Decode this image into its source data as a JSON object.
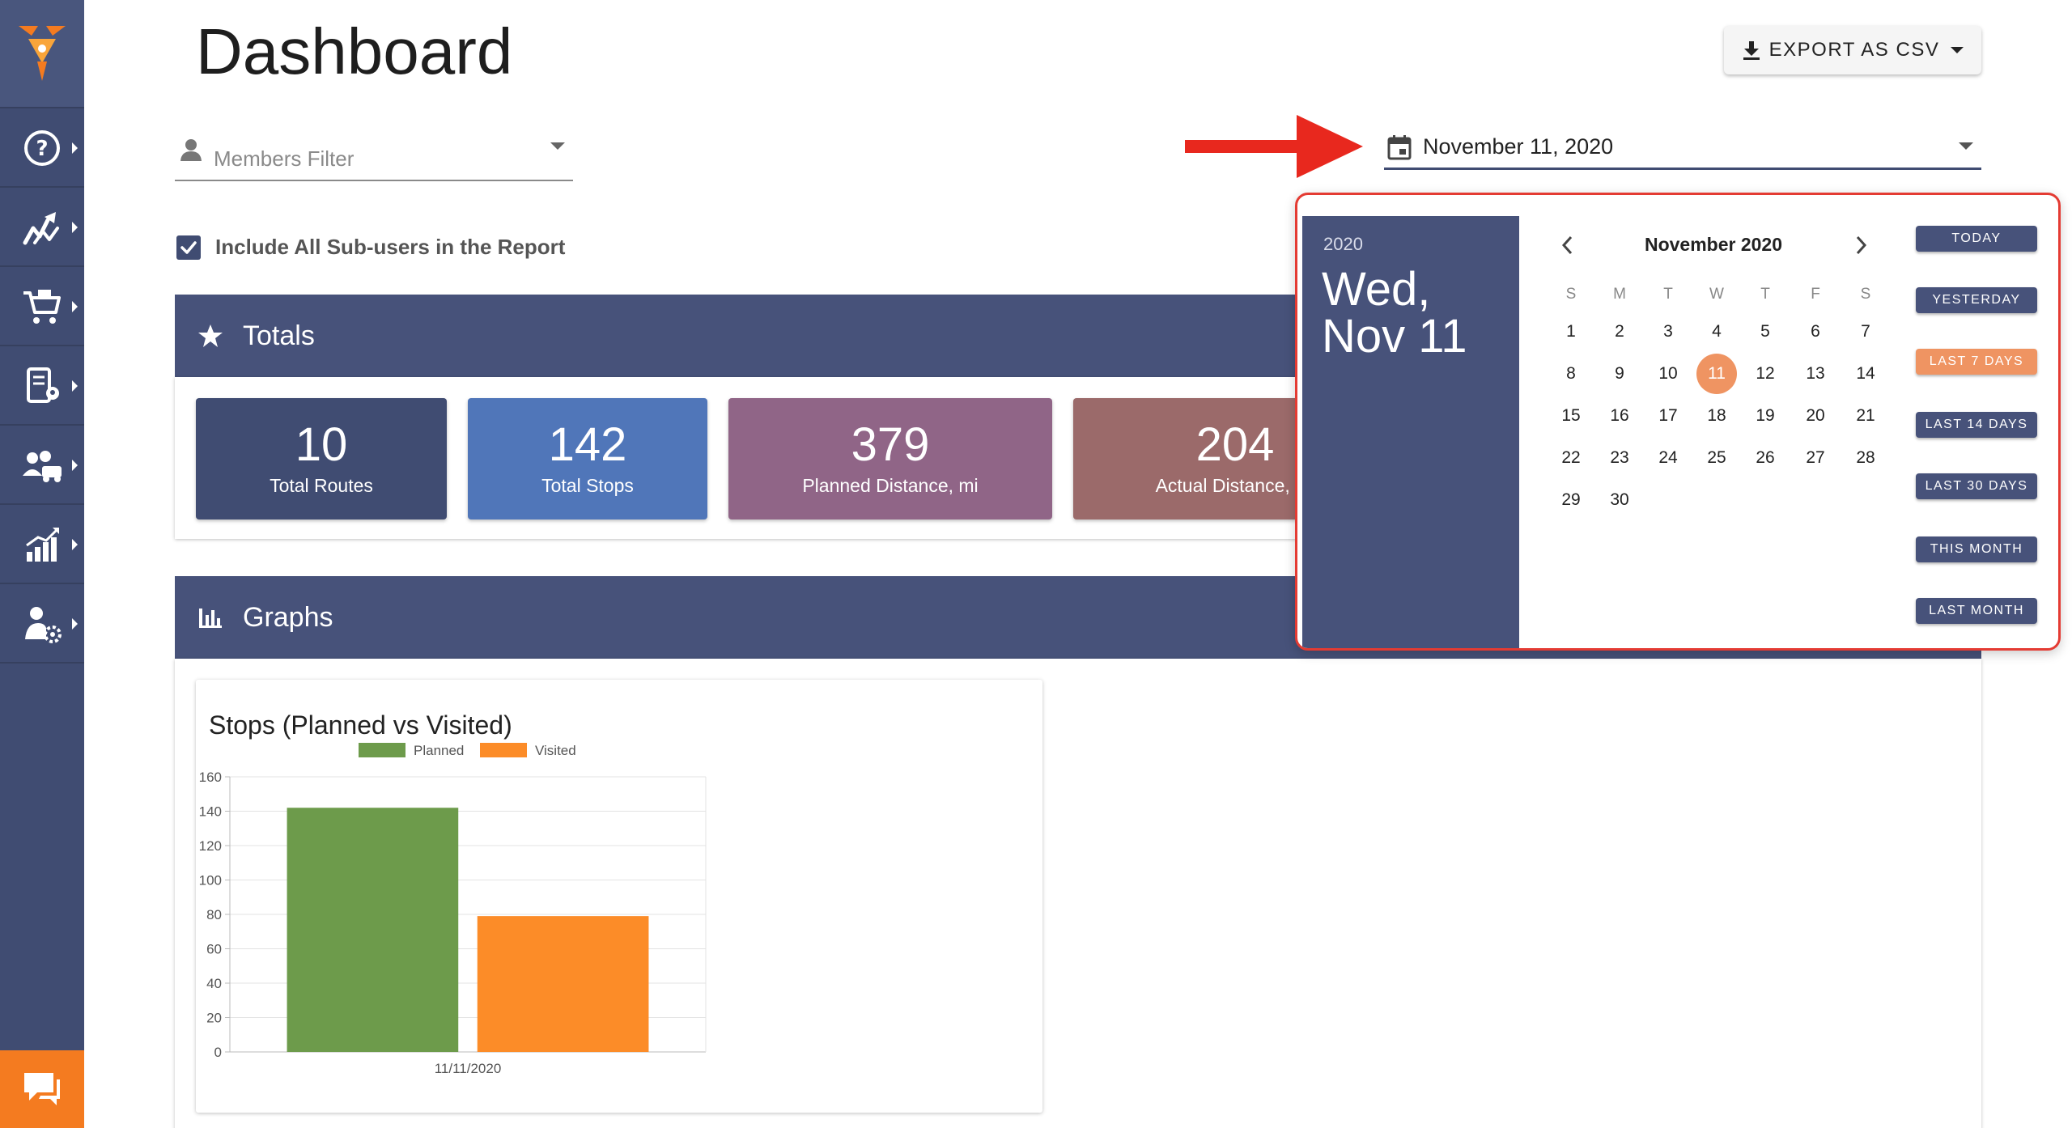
{
  "sidebar": {
    "items": [
      {
        "icon": "help-icon"
      },
      {
        "icon": "routes-icon"
      },
      {
        "icon": "cart-icon"
      },
      {
        "icon": "address-book-icon"
      },
      {
        "icon": "team-icon"
      },
      {
        "icon": "analytics-icon"
      },
      {
        "icon": "user-settings-icon"
      }
    ],
    "chat_icon": "chat-icon"
  },
  "header": {
    "title": "Dashboard",
    "export_label": "EXPORT AS CSV"
  },
  "filters": {
    "members_placeholder": "Members Filter",
    "date_value": "November 11, 2020",
    "subusers_label": "Include All Sub-users in the Report",
    "subusers_checked": true
  },
  "totals": {
    "title": "Totals",
    "cards": [
      {
        "value": "10",
        "label": "Total Routes",
        "color": "#404c72"
      },
      {
        "value": "142",
        "label": "Total Stops",
        "color": "#5076b9"
      },
      {
        "value": "379",
        "label": "Planned Distance, mi",
        "color": "#906587"
      },
      {
        "value": "204",
        "label": "Actual Distance, mi",
        "color": "#9b6a6a"
      }
    ]
  },
  "graphs": {
    "title": "Graphs"
  },
  "chart_data": {
    "type": "bar",
    "title": "Stops (Planned vs Visited)",
    "categories": [
      "11/11/2020"
    ],
    "series": [
      {
        "name": "Planned",
        "values": [
          142
        ],
        "color": "#6d9b4b"
      },
      {
        "name": "Visited",
        "values": [
          79
        ],
        "color": "#fc8c28"
      }
    ],
    "ylim": [
      0,
      160
    ],
    "yticks": [
      0,
      20,
      40,
      60,
      80,
      100,
      120,
      140,
      160
    ],
    "grid": true,
    "legend": "top-center",
    "xlabel": "",
    "ylabel": ""
  },
  "picker": {
    "year": "2020",
    "date_line1": "Wed,",
    "date_line2": "Nov 11",
    "month_label": "November 2020",
    "weekdays": [
      "S",
      "M",
      "T",
      "W",
      "T",
      "F",
      "S"
    ],
    "first_weekday": 0,
    "days_in_month": 30,
    "selected_day": 11,
    "quick_ranges": [
      {
        "label": "TODAY",
        "active": false
      },
      {
        "label": "YESTERDAY",
        "active": false
      },
      {
        "label": "LAST 7 DAYS",
        "active": true
      },
      {
        "label": "LAST 14 DAYS",
        "active": false
      },
      {
        "label": "LAST 30 DAYS",
        "active": false
      },
      {
        "label": "THIS MONTH",
        "active": false
      },
      {
        "label": "LAST MONTH",
        "active": false
      }
    ]
  }
}
